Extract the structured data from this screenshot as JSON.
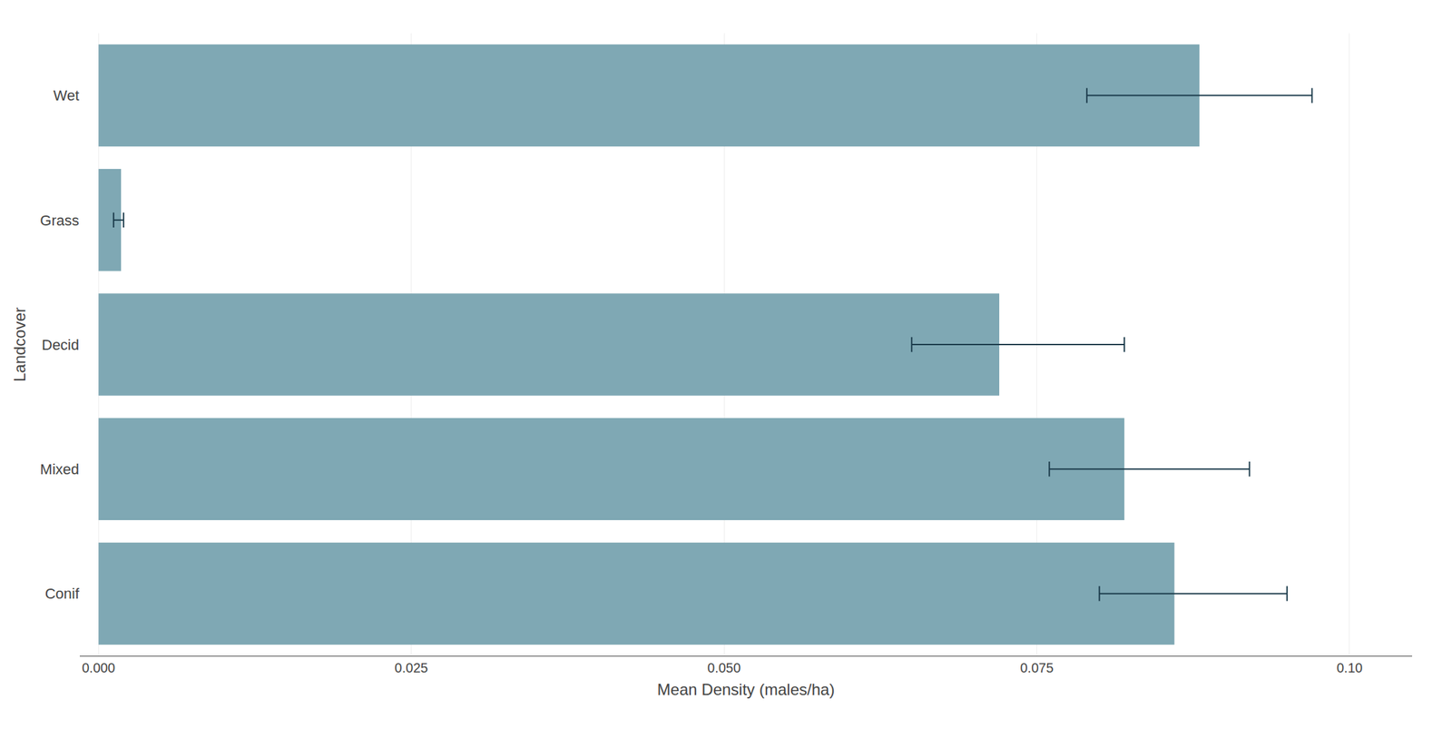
{
  "chart_data": {
    "type": "bar",
    "orientation": "horizontal",
    "xlabel": "Mean Density (males/ha)",
    "ylabel": "Landcover",
    "categories": [
      "Conif",
      "Mixed",
      "Decid",
      "Grass",
      "Wet"
    ],
    "values": [
      0.086,
      0.082,
      0.072,
      0.0018,
      0.088
    ],
    "error_center": [
      0.08,
      0.076,
      0.065,
      0.0012,
      0.079
    ],
    "error_high": [
      0.095,
      0.092,
      0.082,
      0.002,
      0.097
    ],
    "color": "#7fa8b4",
    "error_color": "#1a3a4a",
    "xlim": [
      -0.0015,
      0.105
    ],
    "xticks": [
      {
        "value": 0,
        "label": "0.000"
      },
      0.025,
      {
        "value": 0.05,
        "label": "0.050"
      },
      0.075,
      {
        "value": 0.1,
        "label": "0.10"
      }
    ],
    "grid": true
  }
}
